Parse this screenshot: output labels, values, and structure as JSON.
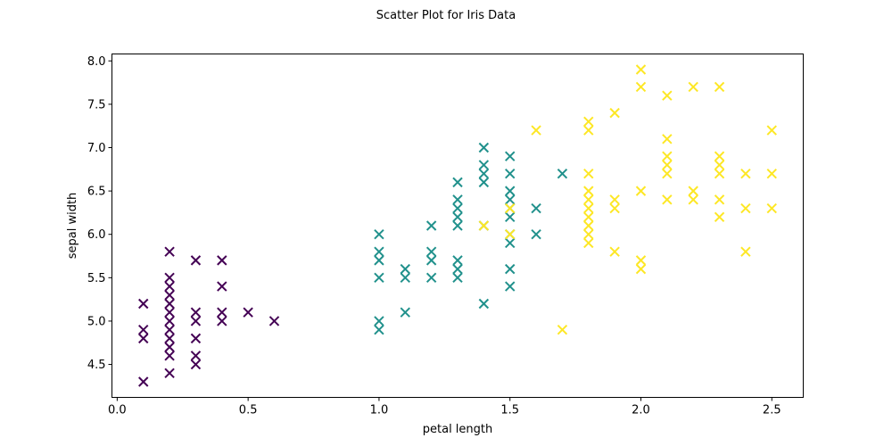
{
  "chart_data": {
    "type": "scatter",
    "title": "Scatter Plot for Iris Data",
    "xlabel": "petal length",
    "ylabel": "sepal width",
    "xlim": [
      -0.02,
      2.62
    ],
    "ylim": [
      4.12,
      8.08
    ],
    "x_ticks": [
      0.0,
      0.5,
      1.0,
      1.5,
      2.0,
      2.5
    ],
    "x_tick_labels": [
      "0.0",
      "0.5",
      "1.0",
      "1.5",
      "2.0",
      "2.5"
    ],
    "y_ticks": [
      4.5,
      5.0,
      5.5,
      6.0,
      6.5,
      7.0,
      7.5,
      8.0
    ],
    "y_tick_labels": [
      "4.5",
      "5.0",
      "5.5",
      "6.0",
      "6.5",
      "7.0",
      "7.5",
      "8.0"
    ],
    "grid": false,
    "marker": "x",
    "series": [
      {
        "color": "#440154",
        "points": [
          [
            0.1,
            5.2
          ],
          [
            0.1,
            4.9
          ],
          [
            0.1,
            4.8
          ],
          [
            0.1,
            4.3
          ],
          [
            0.2,
            5.8
          ],
          [
            0.2,
            5.5
          ],
          [
            0.2,
            5.4
          ],
          [
            0.2,
            5.3
          ],
          [
            0.2,
            5.2
          ],
          [
            0.2,
            5.1
          ],
          [
            0.2,
            5.0
          ],
          [
            0.2,
            4.9
          ],
          [
            0.2,
            4.8
          ],
          [
            0.2,
            4.7
          ],
          [
            0.2,
            4.6
          ],
          [
            0.2,
            4.4
          ],
          [
            0.3,
            5.7
          ],
          [
            0.3,
            5.1
          ],
          [
            0.3,
            5.0
          ],
          [
            0.3,
            4.8
          ],
          [
            0.3,
            4.6
          ],
          [
            0.3,
            4.5
          ],
          [
            0.4,
            5.7
          ],
          [
            0.4,
            5.4
          ],
          [
            0.4,
            5.1
          ],
          [
            0.4,
            5.0
          ],
          [
            0.5,
            5.1
          ],
          [
            0.6,
            5.0
          ]
        ]
      },
      {
        "color": "#21918c",
        "points": [
          [
            1.0,
            6.0
          ],
          [
            1.0,
            5.8
          ],
          [
            1.0,
            5.7
          ],
          [
            1.0,
            5.5
          ],
          [
            1.0,
            5.0
          ],
          [
            1.0,
            4.9
          ],
          [
            1.1,
            5.6
          ],
          [
            1.1,
            5.5
          ],
          [
            1.1,
            5.1
          ],
          [
            1.2,
            6.1
          ],
          [
            1.2,
            5.8
          ],
          [
            1.2,
            5.7
          ],
          [
            1.2,
            5.5
          ],
          [
            1.3,
            6.6
          ],
          [
            1.3,
            6.4
          ],
          [
            1.3,
            6.3
          ],
          [
            1.3,
            6.2
          ],
          [
            1.3,
            6.1
          ],
          [
            1.3,
            5.7
          ],
          [
            1.3,
            5.6
          ],
          [
            1.3,
            5.5
          ],
          [
            1.4,
            7.0
          ],
          [
            1.4,
            6.8
          ],
          [
            1.4,
            6.7
          ],
          [
            1.4,
            6.6
          ],
          [
            1.4,
            6.1
          ],
          [
            1.4,
            5.2
          ],
          [
            1.5,
            6.9
          ],
          [
            1.5,
            6.7
          ],
          [
            1.5,
            6.5
          ],
          [
            1.5,
            6.4
          ],
          [
            1.5,
            6.3
          ],
          [
            1.5,
            6.2
          ],
          [
            1.5,
            6.0
          ],
          [
            1.5,
            5.9
          ],
          [
            1.5,
            5.6
          ],
          [
            1.5,
            5.4
          ],
          [
            1.6,
            6.3
          ],
          [
            1.6,
            6.0
          ],
          [
            1.7,
            6.7
          ]
        ]
      },
      {
        "color": "#fde725",
        "points": [
          [
            1.4,
            6.1
          ],
          [
            1.5,
            6.3
          ],
          [
            1.5,
            6.0
          ],
          [
            1.6,
            7.2
          ],
          [
            1.7,
            4.9
          ],
          [
            1.8,
            7.3
          ],
          [
            1.8,
            7.2
          ],
          [
            1.8,
            6.7
          ],
          [
            1.8,
            6.5
          ],
          [
            1.8,
            6.4
          ],
          [
            1.8,
            6.3
          ],
          [
            1.8,
            6.2
          ],
          [
            1.8,
            6.1
          ],
          [
            1.8,
            6.0
          ],
          [
            1.8,
            5.9
          ],
          [
            1.9,
            7.4
          ],
          [
            1.9,
            6.4
          ],
          [
            1.9,
            6.3
          ],
          [
            1.9,
            5.8
          ],
          [
            2.0,
            7.9
          ],
          [
            2.0,
            7.7
          ],
          [
            2.0,
            6.5
          ],
          [
            2.0,
            5.7
          ],
          [
            2.0,
            5.6
          ],
          [
            2.1,
            7.6
          ],
          [
            2.1,
            7.1
          ],
          [
            2.1,
            6.9
          ],
          [
            2.1,
            6.8
          ],
          [
            2.1,
            6.7
          ],
          [
            2.1,
            6.4
          ],
          [
            2.2,
            7.7
          ],
          [
            2.2,
            6.5
          ],
          [
            2.2,
            6.4
          ],
          [
            2.3,
            7.7
          ],
          [
            2.3,
            6.9
          ],
          [
            2.3,
            6.8
          ],
          [
            2.3,
            6.7
          ],
          [
            2.3,
            6.4
          ],
          [
            2.3,
            6.2
          ],
          [
            2.4,
            6.7
          ],
          [
            2.4,
            6.3
          ],
          [
            2.4,
            5.8
          ],
          [
            2.5,
            7.2
          ],
          [
            2.5,
            6.7
          ],
          [
            2.5,
            6.3
          ]
        ]
      }
    ]
  }
}
